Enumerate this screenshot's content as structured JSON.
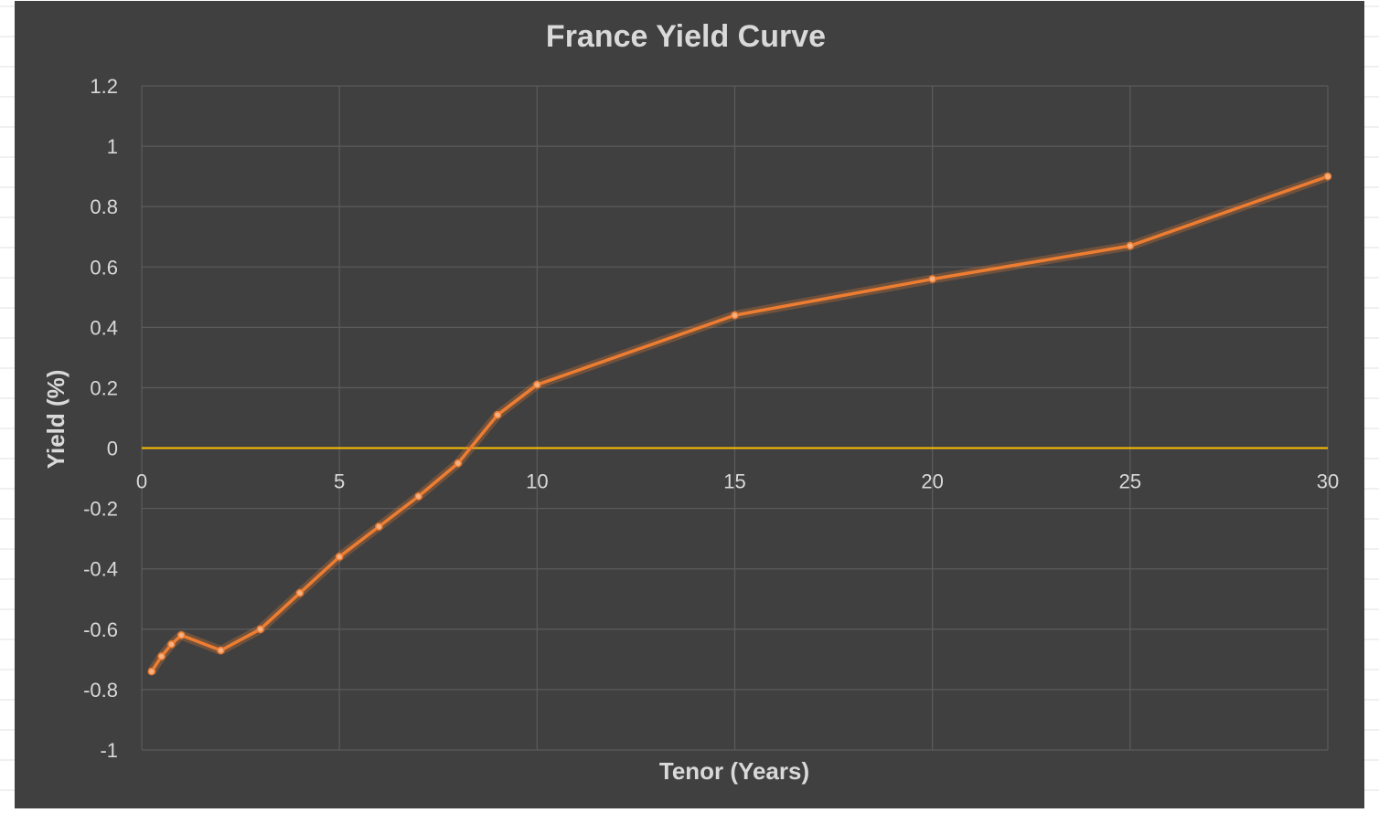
{
  "colors": {
    "background": "#404040",
    "gridline": "#5a5a5a",
    "text": "#d9d9d9",
    "series": "#ed7d31",
    "zero_line": "#ffc000"
  },
  "chart_data": {
    "type": "line",
    "title": "France Yield Curve",
    "xlabel": "Tenor (Years)",
    "ylabel": "Yield (%)",
    "xlim": [
      0,
      30
    ],
    "ylim": [
      -1,
      1.2
    ],
    "xticks": [
      "0",
      "5",
      "10",
      "15",
      "20",
      "25",
      "30"
    ],
    "yticks": [
      "1.2",
      "1",
      "0.8",
      "0.6",
      "0.4",
      "0.2",
      "0",
      "-0.2",
      "-0.4",
      "-0.6",
      "-0.8",
      "-1"
    ],
    "grid": true,
    "legend": "none",
    "series": [
      {
        "x": [
          0.25,
          0.5,
          0.75,
          1,
          2,
          3,
          4,
          5,
          6,
          7,
          8,
          9,
          10,
          15,
          20,
          25,
          30
        ],
        "y": [
          -0.74,
          -0.69,
          -0.65,
          -0.62,
          -0.67,
          -0.6,
          -0.48,
          -0.36,
          -0.26,
          -0.16,
          -0.05,
          0.11,
          0.21,
          0.44,
          0.56,
          0.67,
          0.9
        ]
      }
    ]
  }
}
